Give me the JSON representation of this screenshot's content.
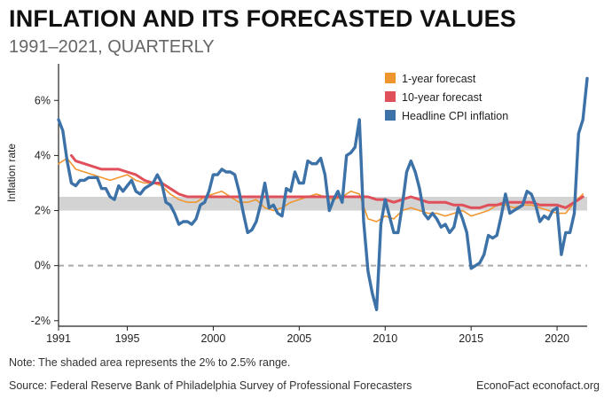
{
  "header": {
    "title": "INFLATION AND ITS FORECASTED VALUES",
    "subtitle": "1991–2021, QUARTERLY"
  },
  "footer": {
    "note": "Note: The shaded area represents the 2% to 2.5% range.",
    "source": "Source: Federal Reserve Bank of Philadelphia Survey of Professional Forecasters",
    "credit": "EconoFact  econofact.org"
  },
  "colors": {
    "one_year": "#f0962f",
    "ten_year": "#e0505a",
    "cpi": "#3d72a8",
    "band": "#d3d3d3",
    "zero_line": "#aaaaaa"
  },
  "chart_data": {
    "type": "line",
    "title": "INFLATION AND ITS FORECASTED VALUES",
    "subtitle": "1991–2021, QUARTERLY",
    "xlabel": "",
    "ylabel": "Inflation rate",
    "xlim": [
      1991,
      2021.75
    ],
    "ylim": [
      -2.2,
      7.2
    ],
    "x_ticks": [
      1991,
      1995,
      2000,
      2005,
      2010,
      2015,
      2020
    ],
    "x_tick_labels": [
      "1991",
      "1995",
      "2000",
      "2005",
      "2010",
      "2015",
      "2020"
    ],
    "y_ticks": [
      -2,
      0,
      2,
      4,
      6
    ],
    "y_tick_labels": [
      "-2%",
      "0%",
      "2%",
      "4%",
      "6%"
    ],
    "shaded_band": [
      2.0,
      2.5
    ],
    "reference_line": 0,
    "legend": [
      "1-year forecast",
      "10-year forecast",
      "Headline CPI inflation"
    ],
    "legend_position": "top-right",
    "series": [
      {
        "name": "1-year forecast",
        "color": "#f0962f",
        "points": [
          [
            1991,
            3.7
          ],
          [
            1991.5,
            3.9
          ],
          [
            1992,
            3.5
          ],
          [
            1992.5,
            3.4
          ],
          [
            1993,
            3.3
          ],
          [
            1993.5,
            3.2
          ],
          [
            1994,
            3.1
          ],
          [
            1994.5,
            3.2
          ],
          [
            1995,
            3.3
          ],
          [
            1995.5,
            3.1
          ],
          [
            1996,
            3.0
          ],
          [
            1996.5,
            3.0
          ],
          [
            1997,
            2.9
          ],
          [
            1997.5,
            2.6
          ],
          [
            1998,
            2.4
          ],
          [
            1998.5,
            2.3
          ],
          [
            1999,
            2.3
          ],
          [
            1999.5,
            2.5
          ],
          [
            2000,
            2.6
          ],
          [
            2000.5,
            2.7
          ],
          [
            2001,
            2.5
          ],
          [
            2001.5,
            2.3
          ],
          [
            2002,
            2.3
          ],
          [
            2002.5,
            2.4
          ],
          [
            2003,
            2.1
          ],
          [
            2003.5,
            2.0
          ],
          [
            2004,
            2.1
          ],
          [
            2004.5,
            2.3
          ],
          [
            2005,
            2.4
          ],
          [
            2005.5,
            2.5
          ],
          [
            2006,
            2.6
          ],
          [
            2006.5,
            2.5
          ],
          [
            2007,
            2.4
          ],
          [
            2007.5,
            2.5
          ],
          [
            2008,
            2.7
          ],
          [
            2008.5,
            2.6
          ],
          [
            2009,
            1.7
          ],
          [
            2009.5,
            1.6
          ],
          [
            2010,
            1.8
          ],
          [
            2010.5,
            1.7
          ],
          [
            2011,
            2.0
          ],
          [
            2011.5,
            2.1
          ],
          [
            2012,
            2.0
          ],
          [
            2012.5,
            1.9
          ],
          [
            2013,
            1.9
          ],
          [
            2013.5,
            1.8
          ],
          [
            2014,
            1.9
          ],
          [
            2014.5,
            2.0
          ],
          [
            2015,
            1.8
          ],
          [
            2015.5,
            1.9
          ],
          [
            2016,
            2.0
          ],
          [
            2016.5,
            2.2
          ],
          [
            2017,
            2.2
          ],
          [
            2017.5,
            2.1
          ],
          [
            2018,
            2.2
          ],
          [
            2018.5,
            2.2
          ],
          [
            2019,
            2.1
          ],
          [
            2019.5,
            2.0
          ],
          [
            2020,
            1.9
          ],
          [
            2020.5,
            1.9
          ],
          [
            2021,
            2.3
          ],
          [
            2021.5,
            2.6
          ]
        ]
      },
      {
        "name": "10-year forecast",
        "color": "#e0505a",
        "points": [
          [
            1991.75,
            4.0
          ],
          [
            1992,
            3.8
          ],
          [
            1992.5,
            3.7
          ],
          [
            1993,
            3.6
          ],
          [
            1993.5,
            3.5
          ],
          [
            1994,
            3.5
          ],
          [
            1994.5,
            3.5
          ],
          [
            1995,
            3.4
          ],
          [
            1995.5,
            3.3
          ],
          [
            1996,
            3.1
          ],
          [
            1996.5,
            3.0
          ],
          [
            1997,
            3.0
          ],
          [
            1997.5,
            2.8
          ],
          [
            1998,
            2.6
          ],
          [
            1998.5,
            2.5
          ],
          [
            1999,
            2.5
          ],
          [
            1999.5,
            2.5
          ],
          [
            2000,
            2.5
          ],
          [
            2000.5,
            2.5
          ],
          [
            2001,
            2.5
          ],
          [
            2001.5,
            2.5
          ],
          [
            2002,
            2.5
          ],
          [
            2002.5,
            2.5
          ],
          [
            2003,
            2.5
          ],
          [
            2003.5,
            2.5
          ],
          [
            2004,
            2.5
          ],
          [
            2004.5,
            2.5
          ],
          [
            2005,
            2.5
          ],
          [
            2005.5,
            2.5
          ],
          [
            2006,
            2.5
          ],
          [
            2006.5,
            2.5
          ],
          [
            2007,
            2.5
          ],
          [
            2007.5,
            2.5
          ],
          [
            2008,
            2.5
          ],
          [
            2008.5,
            2.5
          ],
          [
            2009,
            2.5
          ],
          [
            2009.5,
            2.4
          ],
          [
            2010,
            2.4
          ],
          [
            2010.5,
            2.3
          ],
          [
            2011,
            2.4
          ],
          [
            2011.5,
            2.5
          ],
          [
            2012,
            2.4
          ],
          [
            2012.5,
            2.3
          ],
          [
            2013,
            2.3
          ],
          [
            2013.5,
            2.3
          ],
          [
            2014,
            2.2
          ],
          [
            2014.5,
            2.2
          ],
          [
            2015,
            2.1
          ],
          [
            2015.5,
            2.1
          ],
          [
            2016,
            2.2
          ],
          [
            2016.5,
            2.2
          ],
          [
            2017,
            2.3
          ],
          [
            2017.5,
            2.3
          ],
          [
            2018,
            2.3
          ],
          [
            2018.5,
            2.3
          ],
          [
            2019,
            2.2
          ],
          [
            2019.5,
            2.2
          ],
          [
            2020,
            2.2
          ],
          [
            2020.5,
            2.1
          ],
          [
            2021,
            2.3
          ],
          [
            2021.5,
            2.5
          ]
        ]
      },
      {
        "name": "Headline CPI inflation",
        "color": "#3d72a8",
        "points": [
          [
            1991,
            5.3
          ],
          [
            1991.25,
            4.9
          ],
          [
            1991.5,
            3.8
          ],
          [
            1991.75,
            3.0
          ],
          [
            1992,
            2.9
          ],
          [
            1992.25,
            3.1
          ],
          [
            1992.5,
            3.1
          ],
          [
            1992.75,
            3.2
          ],
          [
            1993,
            3.2
          ],
          [
            1993.25,
            3.2
          ],
          [
            1993.5,
            2.8
          ],
          [
            1993.75,
            2.8
          ],
          [
            1994,
            2.5
          ],
          [
            1994.25,
            2.4
          ],
          [
            1994.5,
            2.9
          ],
          [
            1994.75,
            2.7
          ],
          [
            1995,
            2.9
          ],
          [
            1995.25,
            3.1
          ],
          [
            1995.5,
            2.7
          ],
          [
            1995.75,
            2.6
          ],
          [
            1996,
            2.8
          ],
          [
            1996.25,
            2.9
          ],
          [
            1996.5,
            3.0
          ],
          [
            1996.75,
            3.3
          ],
          [
            1997,
            3.0
          ],
          [
            1997.25,
            2.3
          ],
          [
            1997.5,
            2.2
          ],
          [
            1997.75,
            1.9
          ],
          [
            1998,
            1.5
          ],
          [
            1998.25,
            1.6
          ],
          [
            1998.5,
            1.6
          ],
          [
            1998.75,
            1.5
          ],
          [
            1999,
            1.7
          ],
          [
            1999.25,
            2.2
          ],
          [
            1999.5,
            2.3
          ],
          [
            1999.75,
            2.7
          ],
          [
            2000,
            3.3
          ],
          [
            2000.25,
            3.3
          ],
          [
            2000.5,
            3.5
          ],
          [
            2000.75,
            3.4
          ],
          [
            2001,
            3.4
          ],
          [
            2001.25,
            3.3
          ],
          [
            2001.5,
            2.7
          ],
          [
            2001.75,
            1.9
          ],
          [
            2002,
            1.2
          ],
          [
            2002.25,
            1.3
          ],
          [
            2002.5,
            1.6
          ],
          [
            2002.75,
            2.2
          ],
          [
            2003,
            3.0
          ],
          [
            2003.25,
            2.1
          ],
          [
            2003.5,
            2.2
          ],
          [
            2003.75,
            1.9
          ],
          [
            2004,
            1.8
          ],
          [
            2004.25,
            2.8
          ],
          [
            2004.5,
            2.7
          ],
          [
            2004.75,
            3.4
          ],
          [
            2005,
            3.0
          ],
          [
            2005.25,
            3.0
          ],
          [
            2005.5,
            3.8
          ],
          [
            2005.75,
            3.7
          ],
          [
            2006,
            3.7
          ],
          [
            2006.25,
            3.9
          ],
          [
            2006.5,
            3.3
          ],
          [
            2006.75,
            2.0
          ],
          [
            2007,
            2.4
          ],
          [
            2007.25,
            2.7
          ],
          [
            2007.5,
            2.3
          ],
          [
            2007.75,
            4.0
          ],
          [
            2008,
            4.1
          ],
          [
            2008.25,
            4.3
          ],
          [
            2008.5,
            5.3
          ],
          [
            2008.75,
            1.6
          ],
          [
            2009,
            -0.2
          ],
          [
            2009.25,
            -1.0
          ],
          [
            2009.5,
            -1.6
          ],
          [
            2009.75,
            1.5
          ],
          [
            2010,
            2.4
          ],
          [
            2010.25,
            1.8
          ],
          [
            2010.5,
            1.2
          ],
          [
            2010.75,
            1.2
          ],
          [
            2011,
            2.2
          ],
          [
            2011.25,
            3.4
          ],
          [
            2011.5,
            3.8
          ],
          [
            2011.75,
            3.4
          ],
          [
            2012,
            2.8
          ],
          [
            2012.25,
            1.9
          ],
          [
            2012.5,
            1.7
          ],
          [
            2012.75,
            1.9
          ],
          [
            2013,
            1.7
          ],
          [
            2013.25,
            1.4
          ],
          [
            2013.5,
            1.5
          ],
          [
            2013.75,
            1.2
          ],
          [
            2014,
            1.4
          ],
          [
            2014.25,
            2.1
          ],
          [
            2014.5,
            1.7
          ],
          [
            2014.75,
            1.2
          ],
          [
            2015,
            -0.1
          ],
          [
            2015.25,
            0.0
          ],
          [
            2015.5,
            0.1
          ],
          [
            2015.75,
            0.4
          ],
          [
            2016,
            1.1
          ],
          [
            2016.25,
            1.0
          ],
          [
            2016.5,
            1.1
          ],
          [
            2016.75,
            1.8
          ],
          [
            2017,
            2.6
          ],
          [
            2017.25,
            1.9
          ],
          [
            2017.5,
            2.0
          ],
          [
            2017.75,
            2.1
          ],
          [
            2018,
            2.2
          ],
          [
            2018.25,
            2.7
          ],
          [
            2018.5,
            2.6
          ],
          [
            2018.75,
            2.2
          ],
          [
            2019,
            1.6
          ],
          [
            2019.25,
            1.8
          ],
          [
            2019.5,
            1.7
          ],
          [
            2019.75,
            2.0
          ],
          [
            2020,
            2.1
          ],
          [
            2020.25,
            0.4
          ],
          [
            2020.5,
            1.2
          ],
          [
            2020.75,
            1.2
          ],
          [
            2021,
            1.9
          ],
          [
            2021.25,
            4.8
          ],
          [
            2021.5,
            5.3
          ],
          [
            2021.75,
            6.8
          ]
        ]
      }
    ]
  }
}
